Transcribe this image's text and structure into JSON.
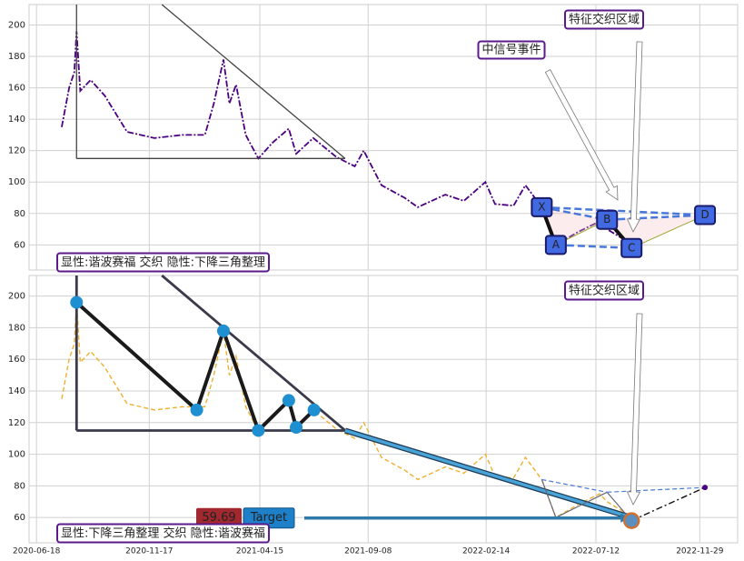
{
  "chart_data": [
    {
      "type": "line",
      "label": "显性:谐波赛福 交织 隐性:下降三角整理",
      "annotations": [
        "特征交织区域",
        "中信号事件"
      ],
      "xlim": [
        "2020-06-08",
        "2023-01-19"
      ],
      "ylim": [
        44,
        213
      ],
      "yticks": [
        60,
        80,
        100,
        120,
        140,
        160,
        180,
        200
      ],
      "grid": true,
      "series": [
        {
          "color": "#4b0082",
          "x": [
            "2020-07-22",
            "2020-08-01",
            "2020-08-08",
            "2020-08-11",
            "2020-08-16",
            "2020-08-30",
            "2020-09-18",
            "2020-10-18",
            "2020-11-24",
            "2020-12-31",
            "2021-01-31",
            "2021-02-12",
            "2021-02-25",
            "2021-03-05",
            "2021-03-14",
            "2021-03-27",
            "2021-04-13",
            "2021-05-02",
            "2021-05-24",
            "2021-06-03",
            "2021-06-26",
            "2021-07-27",
            "2021-08-21",
            "2021-09-02",
            "2021-09-26",
            "2021-10-27",
            "2021-11-14",
            "2021-12-21",
            "2022-01-15",
            "2022-02-13",
            "2022-02-26",
            "2022-03-23",
            "2022-04-08",
            "2022-04-30",
            "2022-05-19",
            "2022-06-17",
            "2022-07-17",
            "2022-07-27",
            "2022-08-17",
            "2022-08-29"
          ],
          "values": [
            135,
            160,
            170,
            196,
            158,
            165,
            155,
            132,
            128,
            130,
            130,
            150,
            178,
            150,
            162,
            130,
            115,
            125,
            134,
            118,
            128,
            116,
            110,
            120,
            98,
            90,
            84,
            92,
            88,
            100,
            86,
            85,
            98,
            84,
            60,
            68,
            75,
            70,
            64,
            60
          ]
        }
      ],
      "trendlines": [
        {
          "x": [
            "2020-12-04",
            "2021-08-08"
          ],
          "values": [
            213,
            115
          ]
        },
        {
          "x": [
            "2020-08-11",
            "2021-08-08"
          ],
          "values": [
            115,
            115
          ]
        },
        {
          "x": [
            "2020-08-11",
            "2020-08-11"
          ],
          "values": [
            213,
            115
          ]
        }
      ],
      "pattern": {
        "labels": [
          "X",
          "A",
          "B",
          "C",
          "D"
        ],
        "x": [
          "2022-04-30",
          "2022-05-19",
          "2022-07-27",
          "2022-08-29",
          "2022-12-06"
        ],
        "values": [
          84,
          60,
          76,
          58,
          79
        ]
      }
    },
    {
      "type": "line",
      "label": "显性:下降三角整理 交织 隐性:谐波赛福",
      "annotations": [
        "特征交织区域"
      ],
      "xlim": [
        "2020-06-08",
        "2023-01-19"
      ],
      "ylim": [
        44,
        213
      ],
      "xticks": [
        "2020-06-18",
        "2020-11-17",
        "2021-04-15",
        "2021-09-08",
        "2022-02-14",
        "2022-07-12",
        "2022-11-29"
      ],
      "yticks": [
        60,
        80,
        100,
        120,
        140,
        160,
        180,
        200
      ],
      "grid": true,
      "series": [
        {
          "color": "#f0b030",
          "x": [
            "2020-07-22",
            "2020-08-01",
            "2020-08-08",
            "2020-08-11",
            "2020-08-16",
            "2020-08-30",
            "2020-09-18",
            "2020-10-18",
            "2020-11-24",
            "2020-12-31",
            "2021-01-31",
            "2021-02-12",
            "2021-02-25",
            "2021-03-05",
            "2021-03-14",
            "2021-03-27",
            "2021-04-13",
            "2021-05-02",
            "2021-05-24",
            "2021-06-03",
            "2021-06-26",
            "2021-07-27",
            "2021-08-21",
            "2021-09-02",
            "2021-09-26",
            "2021-10-27",
            "2021-11-14",
            "2021-12-21",
            "2022-01-15",
            "2022-02-13",
            "2022-02-26",
            "2022-03-23",
            "2022-04-08",
            "2022-04-30",
            "2022-05-19",
            "2022-06-17",
            "2022-07-17",
            "2022-07-27",
            "2022-08-17",
            "2022-08-29"
          ],
          "values": [
            135,
            160,
            170,
            196,
            158,
            165,
            155,
            132,
            128,
            130,
            130,
            150,
            178,
            150,
            162,
            130,
            115,
            125,
            134,
            118,
            128,
            116,
            110,
            120,
            98,
            90,
            84,
            92,
            88,
            100,
            86,
            85,
            98,
            84,
            60,
            68,
            75,
            70,
            64,
            60
          ]
        }
      ],
      "trendlines": [
        {
          "x": [
            "2020-12-04",
            "2021-08-08"
          ],
          "values": [
            213,
            115
          ]
        },
        {
          "x": [
            "2020-08-11",
            "2021-08-08"
          ],
          "values": [
            115,
            115
          ]
        },
        {
          "x": [
            "2020-08-11",
            "2020-08-11"
          ],
          "values": [
            213,
            115
          ]
        }
      ],
      "pivots": {
        "x": [
          "2020-08-11",
          "2021-01-20",
          "2021-02-25",
          "2021-04-13",
          "2021-05-24",
          "2021-06-03",
          "2021-06-27"
        ],
        "values": [
          196,
          128,
          178,
          115,
          134,
          117,
          128
        ]
      },
      "projection": {
        "x": [
          "2021-08-08",
          "2022-08-29"
        ],
        "values": [
          115,
          60
        ]
      },
      "pattern": {
        "x": [
          "2022-04-30",
          "2022-05-19",
          "2022-07-27",
          "2022-08-29",
          "2022-12-06"
        ],
        "values": [
          84,
          60,
          76,
          58,
          79
        ]
      },
      "target": {
        "value": 59.69,
        "label": "Target"
      }
    }
  ]
}
